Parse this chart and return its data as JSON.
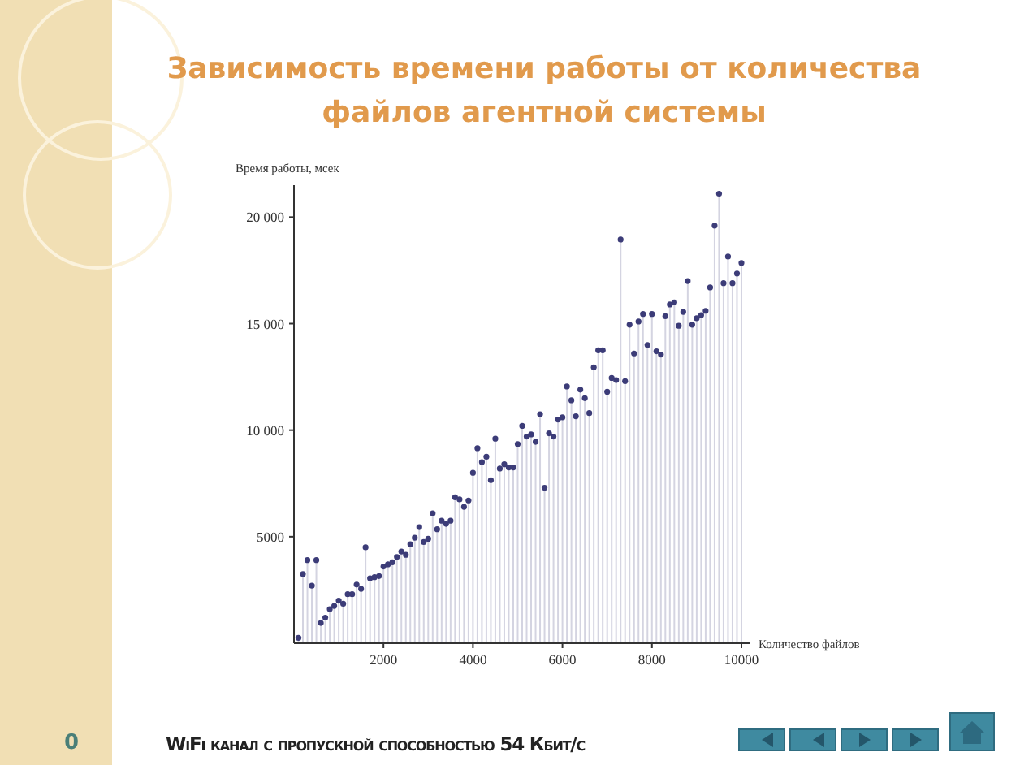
{
  "chart_data": {
    "type": "lollipop",
    "title": "Зависимость времени работы от количества файлов агентной системы",
    "subtitle": "WiFi канал с пропускной способностью 54 Кбит/с",
    "xlabel": "Количество файлов",
    "ylabel": "Время работы, мсек",
    "annotations": [
      "0"
    ],
    "x": [
      100,
      200,
      300,
      400,
      500,
      600,
      700,
      800,
      900,
      1000,
      1100,
      1200,
      1300,
      1400,
      1500,
      1600,
      1700,
      1800,
      1900,
      2000,
      2100,
      2200,
      2300,
      2400,
      2500,
      2600,
      2700,
      2800,
      2900,
      3000,
      3100,
      3200,
      3300,
      3400,
      3500,
      3600,
      3700,
      3800,
      3900,
      4000,
      4100,
      4200,
      4300,
      4400,
      4500,
      4600,
      4700,
      4800,
      4900,
      5000,
      5100,
      5200,
      5300,
      5400,
      5500,
      5600,
      5700,
      5800,
      5900,
      6000,
      6100,
      6200,
      6300,
      6400,
      6500,
      6600,
      6700,
      6800,
      6900,
      7000,
      7100,
      7200,
      7300,
      7400,
      7500,
      7600,
      7700,
      7800,
      7900,
      8000,
      8100,
      8200,
      8300,
      8400,
      8500,
      8600,
      8700,
      8800,
      8900,
      9000,
      9100,
      9200,
      9300,
      9400,
      9500,
      9600,
      9700,
      9800,
      9900,
      10000
    ],
    "series": [
      {
        "color": "#3c3c78",
        "values": [
          250,
          3250,
          3900,
          2700,
          3900,
          950,
          1200,
          1600,
          1750,
          2000,
          1850,
          2300,
          2300,
          2750,
          2550,
          4500,
          3050,
          3100,
          3150,
          3600,
          3700,
          3800,
          4050,
          4300,
          4150,
          4650,
          4950,
          5450,
          4750,
          4900,
          6100,
          5350,
          5750,
          5600,
          5750,
          6850,
          6750,
          6400,
          6700,
          8000,
          9150,
          8500,
          8750,
          7650,
          9600,
          8200,
          8400,
          8250,
          8250,
          9350,
          10200,
          9700,
          9800,
          9450,
          10750,
          7300,
          9850,
          9700,
          10500,
          10600,
          12050,
          11400,
          10650,
          11900,
          11500,
          10800,
          12950,
          13750,
          13750,
          11800,
          12450,
          12350,
          18950,
          12300,
          14950,
          13600,
          15100,
          15450,
          14000,
          15450,
          13700,
          13550,
          15350,
          15900,
          16000,
          14900,
          15550,
          17000,
          14950,
          15250,
          15400,
          15600,
          16700,
          19600,
          21100,
          16900,
          18150,
          16900,
          17350,
          17850
        ]
      }
    ],
    "xlim": [
      0,
      10200
    ],
    "ylim": [
      0,
      21500
    ],
    "xticks": [
      2000,
      4000,
      6000,
      8000,
      10000
    ],
    "yticks": [
      {
        "value": 5000,
        "label": "5000"
      },
      {
        "value": 10000,
        "label": "10 000"
      },
      {
        "value": 15000,
        "label": "15 000"
      },
      {
        "value": 20000,
        "label": "20 000"
      }
    ],
    "marker": "circle"
  }
}
